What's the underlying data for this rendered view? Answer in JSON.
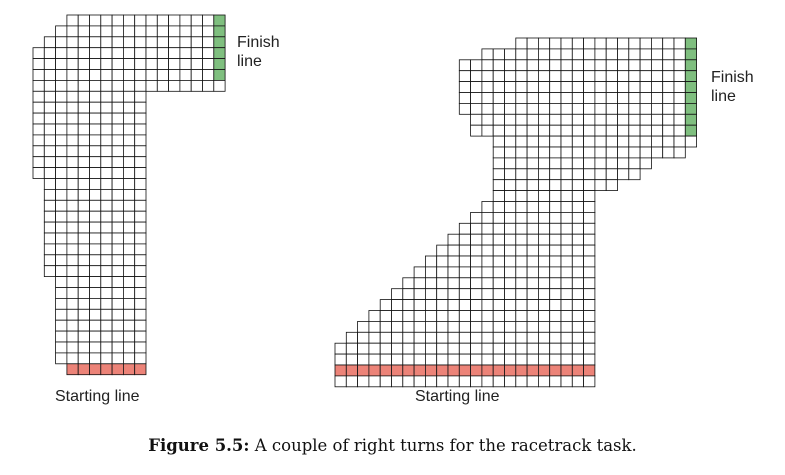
{
  "colors": {
    "grid_line": "#111111",
    "cell_fill": "#ffffff",
    "finish_fill": "#7fbf7f",
    "start_fill": "#ec8378"
  },
  "track_left": {
    "finish_label": [
      "Finish",
      "line"
    ],
    "start_label": "Starting line"
  },
  "track_right": {
    "finish_label": [
      "Finish",
      "line"
    ],
    "start_label": "Starting line"
  },
  "caption": {
    "label": "Figure 5.5:",
    "text": "A couple of right turns for the racetrack task."
  }
}
